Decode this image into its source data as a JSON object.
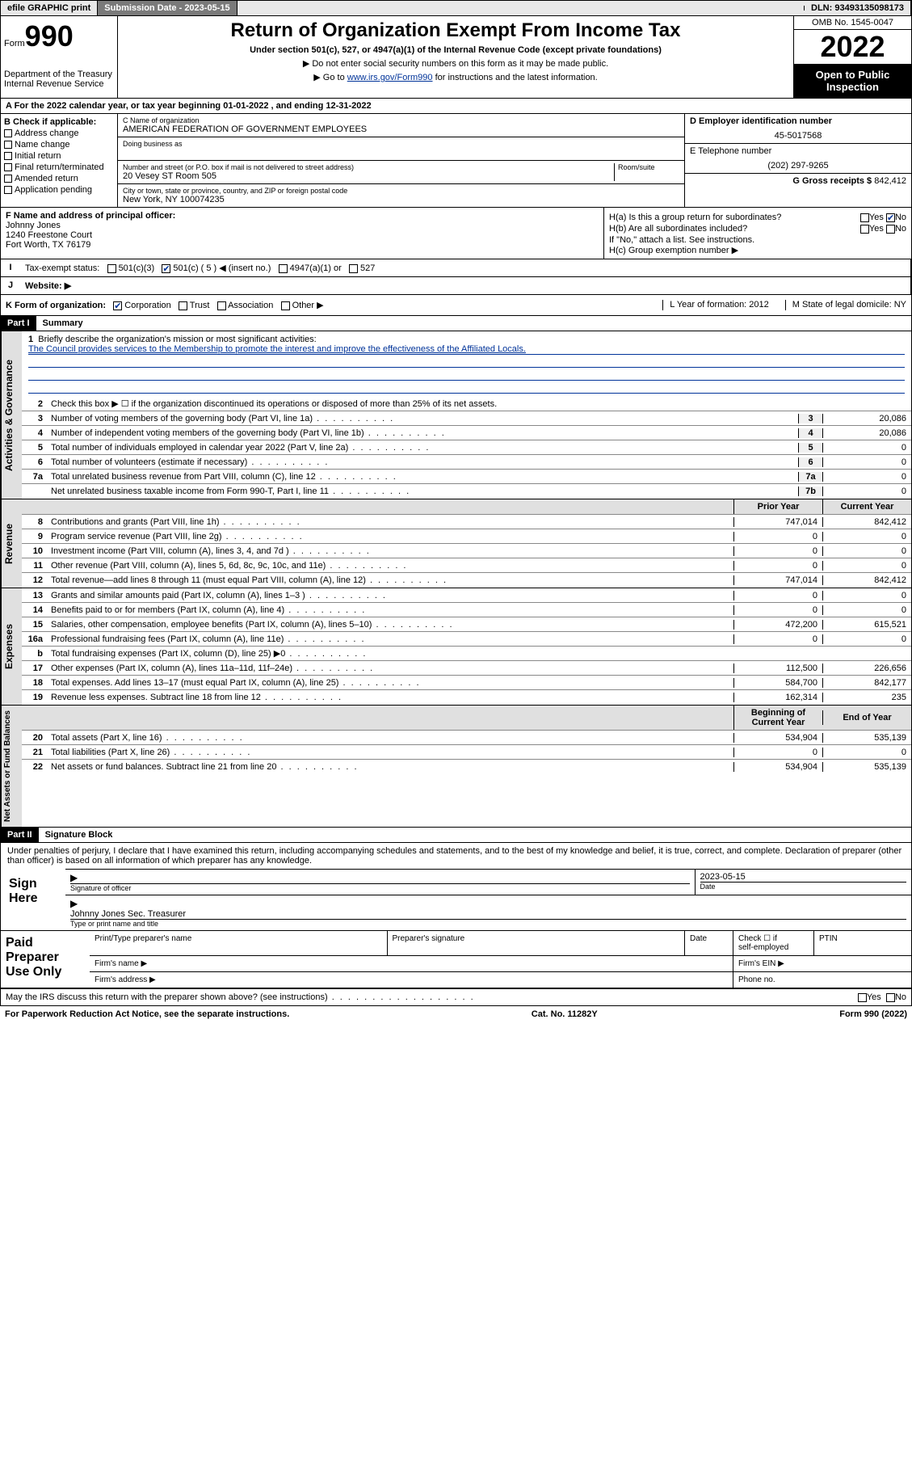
{
  "topbar": {
    "efile": "efile GRAPHIC print",
    "sub_label": "Submission Date - 2023-05-15",
    "dln": "DLN: 93493135098173"
  },
  "header": {
    "form_label": "Form",
    "form_num": "990",
    "title": "Return of Organization Exempt From Income Tax",
    "subtitle": "Under section 501(c), 527, or 4947(a)(1) of the Internal Revenue Code (except private foundations)",
    "note1": "▶ Do not enter social security numbers on this form as it may be made public.",
    "note2_pre": "▶ Go to ",
    "note2_link": "www.irs.gov/Form990",
    "note2_post": " for instructions and the latest information.",
    "omb": "OMB No. 1545-0047",
    "year": "2022",
    "open": "Open to Public Inspection",
    "dept": "Department of the Treasury",
    "irs": "Internal Revenue Service"
  },
  "period": {
    "text_a": "A For the 2022 calendar year, or tax year beginning ",
    "begin": "01-01-2022",
    "text_b": " , and ending ",
    "end": "12-31-2022"
  },
  "box_b": {
    "label": "B Check if applicable:",
    "items": [
      "Address change",
      "Name change",
      "Initial return",
      "Final return/terminated",
      "Amended return",
      "Application pending"
    ]
  },
  "box_c": {
    "name_label": "C Name of organization",
    "name": "AMERICAN FEDERATION OF GOVERNMENT EMPLOYEES",
    "dba_label": "Doing business as",
    "street_label": "Number and street (or P.O. box if mail is not delivered to street address)",
    "room_label": "Room/suite",
    "street": "20 Vesey ST Room 505",
    "city_label": "City or town, state or province, country, and ZIP or foreign postal code",
    "city": "New York, NY  100074235"
  },
  "box_d": {
    "label": "D Employer identification number",
    "value": "45-5017568"
  },
  "box_e": {
    "label": "E Telephone number",
    "value": "(202) 297-9265"
  },
  "box_g": {
    "label": "G Gross receipts $",
    "value": "842,412"
  },
  "box_f": {
    "label": "F Name and address of principal officer:",
    "name": "Johnny Jones",
    "addr1": "1240 Freestone Court",
    "addr2": "Fort Worth, TX  76179"
  },
  "box_h": {
    "ha": "H(a)  Is this a group return for subordinates?",
    "hb": "H(b)  Are all subordinates included?",
    "hb_note": "If \"No,\" attach a list. See instructions.",
    "hc": "H(c)  Group exemption number ▶",
    "yes": "Yes",
    "no": "No"
  },
  "row_i": {
    "label": "Tax-exempt status:",
    "opts": [
      "501(c)(3)",
      "501(c) ( 5 ) ◀ (insert no.)",
      "4947(a)(1) or",
      "527"
    ]
  },
  "row_j": {
    "label": "Website: ▶"
  },
  "row_k": {
    "label": "K Form of organization:",
    "opts": [
      "Corporation",
      "Trust",
      "Association",
      "Other ▶"
    ],
    "l": "L Year of formation: 2012",
    "m": "M State of legal domicile: NY"
  },
  "part1": {
    "hdr": "Part I",
    "title": "Summary"
  },
  "governance": {
    "label": "Activities & Governance",
    "l1_label": "Briefly describe the organization's mission or most significant activities:",
    "l1_text": "The Council provides services to the Membership to promote the interest and improve the effectiveness of the Affiliated Locals.",
    "l2": "Check this box ▶ ☐  if the organization discontinued its operations or disposed of more than 25% of its net assets.",
    "rows": [
      {
        "n": "3",
        "t": "Number of voting members of the governing body (Part VI, line 1a)",
        "b": "3",
        "v": "20,086"
      },
      {
        "n": "4",
        "t": "Number of independent voting members of the governing body (Part VI, line 1b)",
        "b": "4",
        "v": "20,086"
      },
      {
        "n": "5",
        "t": "Total number of individuals employed in calendar year 2022 (Part V, line 2a)",
        "b": "5",
        "v": "0"
      },
      {
        "n": "6",
        "t": "Total number of volunteers (estimate if necessary)",
        "b": "6",
        "v": "0"
      },
      {
        "n": "7a",
        "t": "Total unrelated business revenue from Part VIII, column (C), line 12",
        "b": "7a",
        "v": "0"
      },
      {
        "n": "",
        "t": "Net unrelated business taxable income from Form 990-T, Part I, line 11",
        "b": "7b",
        "v": "0"
      }
    ]
  },
  "two_col_hdr": {
    "prior": "Prior Year",
    "current": "Current Year",
    "begin": "Beginning of Current Year",
    "end": "End of Year"
  },
  "revenue": {
    "label": "Revenue",
    "rows": [
      {
        "n": "8",
        "t": "Contributions and grants (Part VIII, line 1h)",
        "p": "747,014",
        "c": "842,412"
      },
      {
        "n": "9",
        "t": "Program service revenue (Part VIII, line 2g)",
        "p": "0",
        "c": "0"
      },
      {
        "n": "10",
        "t": "Investment income (Part VIII, column (A), lines 3, 4, and 7d )",
        "p": "0",
        "c": "0"
      },
      {
        "n": "11",
        "t": "Other revenue (Part VIII, column (A), lines 5, 6d, 8c, 9c, 10c, and 11e)",
        "p": "0",
        "c": "0"
      },
      {
        "n": "12",
        "t": "Total revenue—add lines 8 through 11 (must equal Part VIII, column (A), line 12)",
        "p": "747,014",
        "c": "842,412"
      }
    ]
  },
  "expenses": {
    "label": "Expenses",
    "rows": [
      {
        "n": "13",
        "t": "Grants and similar amounts paid (Part IX, column (A), lines 1–3 )",
        "p": "0",
        "c": "0"
      },
      {
        "n": "14",
        "t": "Benefits paid to or for members (Part IX, column (A), line 4)",
        "p": "0",
        "c": "0"
      },
      {
        "n": "15",
        "t": "Salaries, other compensation, employee benefits (Part IX, column (A), lines 5–10)",
        "p": "472,200",
        "c": "615,521"
      },
      {
        "n": "16a",
        "t": "Professional fundraising fees (Part IX, column (A), line 11e)",
        "p": "0",
        "c": "0"
      },
      {
        "n": "b",
        "t": "Total fundraising expenses (Part IX, column (D), line 25) ▶0",
        "p": "",
        "c": ""
      },
      {
        "n": "17",
        "t": "Other expenses (Part IX, column (A), lines 11a–11d, 11f–24e)",
        "p": "112,500",
        "c": "226,656"
      },
      {
        "n": "18",
        "t": "Total expenses. Add lines 13–17 (must equal Part IX, column (A), line 25)",
        "p": "584,700",
        "c": "842,177"
      },
      {
        "n": "19",
        "t": "Revenue less expenses. Subtract line 18 from line 12",
        "p": "162,314",
        "c": "235"
      }
    ]
  },
  "netassets": {
    "label": "Net Assets or Fund Balances",
    "rows": [
      {
        "n": "20",
        "t": "Total assets (Part X, line 16)",
        "p": "534,904",
        "c": "535,139"
      },
      {
        "n": "21",
        "t": "Total liabilities (Part X, line 26)",
        "p": "0",
        "c": "0"
      },
      {
        "n": "22",
        "t": "Net assets or fund balances. Subtract line 21 from line 20",
        "p": "534,904",
        "c": "535,139"
      }
    ]
  },
  "part2": {
    "hdr": "Part II",
    "title": "Signature Block"
  },
  "sig": {
    "decl": "Under penalties of perjury, I declare that I have examined this return, including accompanying schedules and statements, and to the best of my knowledge and belief, it is true, correct, and complete. Declaration of preparer (other than officer) is based on all information of which preparer has any knowledge.",
    "sign_here": "Sign Here",
    "sig_officer": "Signature of officer",
    "date_label": "Date",
    "date": "2023-05-15",
    "name_title": "Johnny Jones  Sec. Treasurer",
    "name_label": "Type or print name and title"
  },
  "paid": {
    "label": "Paid Preparer Use Only",
    "h1": "Print/Type preparer's name",
    "h2": "Preparer's signature",
    "h3": "Date",
    "h4_a": "Check ☐ if",
    "h4_b": "self-employed",
    "h5": "PTIN",
    "firm_name": "Firm's name    ▶",
    "firm_ein": "Firm's EIN ▶",
    "firm_addr": "Firm's address ▶",
    "phone": "Phone no."
  },
  "discuss": {
    "text": "May the IRS discuss this return with the preparer shown above? (see instructions)",
    "yes": "Yes",
    "no": "No"
  },
  "footer": {
    "left": "For Paperwork Reduction Act Notice, see the separate instructions.",
    "mid": "Cat. No. 11282Y",
    "right": "Form 990 (2022)"
  }
}
